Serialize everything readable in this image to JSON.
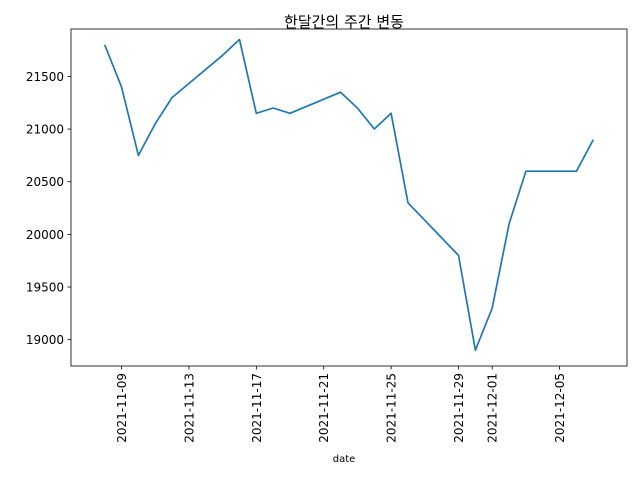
{
  "chart_data": {
    "type": "line",
    "title": "한달간의 주간 변동",
    "xlabel": "date",
    "ylabel": "",
    "x": [
      "2021-11-08",
      "2021-11-09",
      "2021-11-10",
      "2021-11-11",
      "2021-11-12",
      "2021-11-15",
      "2021-11-16",
      "2021-11-17",
      "2021-11-18",
      "2021-11-19",
      "2021-11-22",
      "2021-11-23",
      "2021-11-24",
      "2021-11-25",
      "2021-11-26",
      "2021-11-29",
      "2021-11-30",
      "2021-12-01",
      "2021-12-02",
      "2021-12-03",
      "2021-12-06",
      "2021-12-07"
    ],
    "series": [
      {
        "name": "",
        "values": [
          21800,
          21400,
          20750,
          21050,
          21300,
          21700,
          21850,
          21150,
          21200,
          21150,
          21350,
          21200,
          21000,
          21150,
          20300,
          19800,
          18900,
          19300,
          20100,
          20600,
          20600,
          20900
        ]
      }
    ],
    "xlim": [
      "2021-11-06",
      "2021-12-09"
    ],
    "ylim": [
      18750,
      21950
    ],
    "xticks": [
      "2021-11-09",
      "2021-11-13",
      "2021-11-17",
      "2021-11-21",
      "2021-11-25",
      "2021-11-29",
      "2021-12-01",
      "2021-12-05"
    ],
    "yticks": [
      19000,
      19500,
      20000,
      20500,
      21000,
      21500
    ],
    "grid": false,
    "line_color": "#1f77b4"
  }
}
